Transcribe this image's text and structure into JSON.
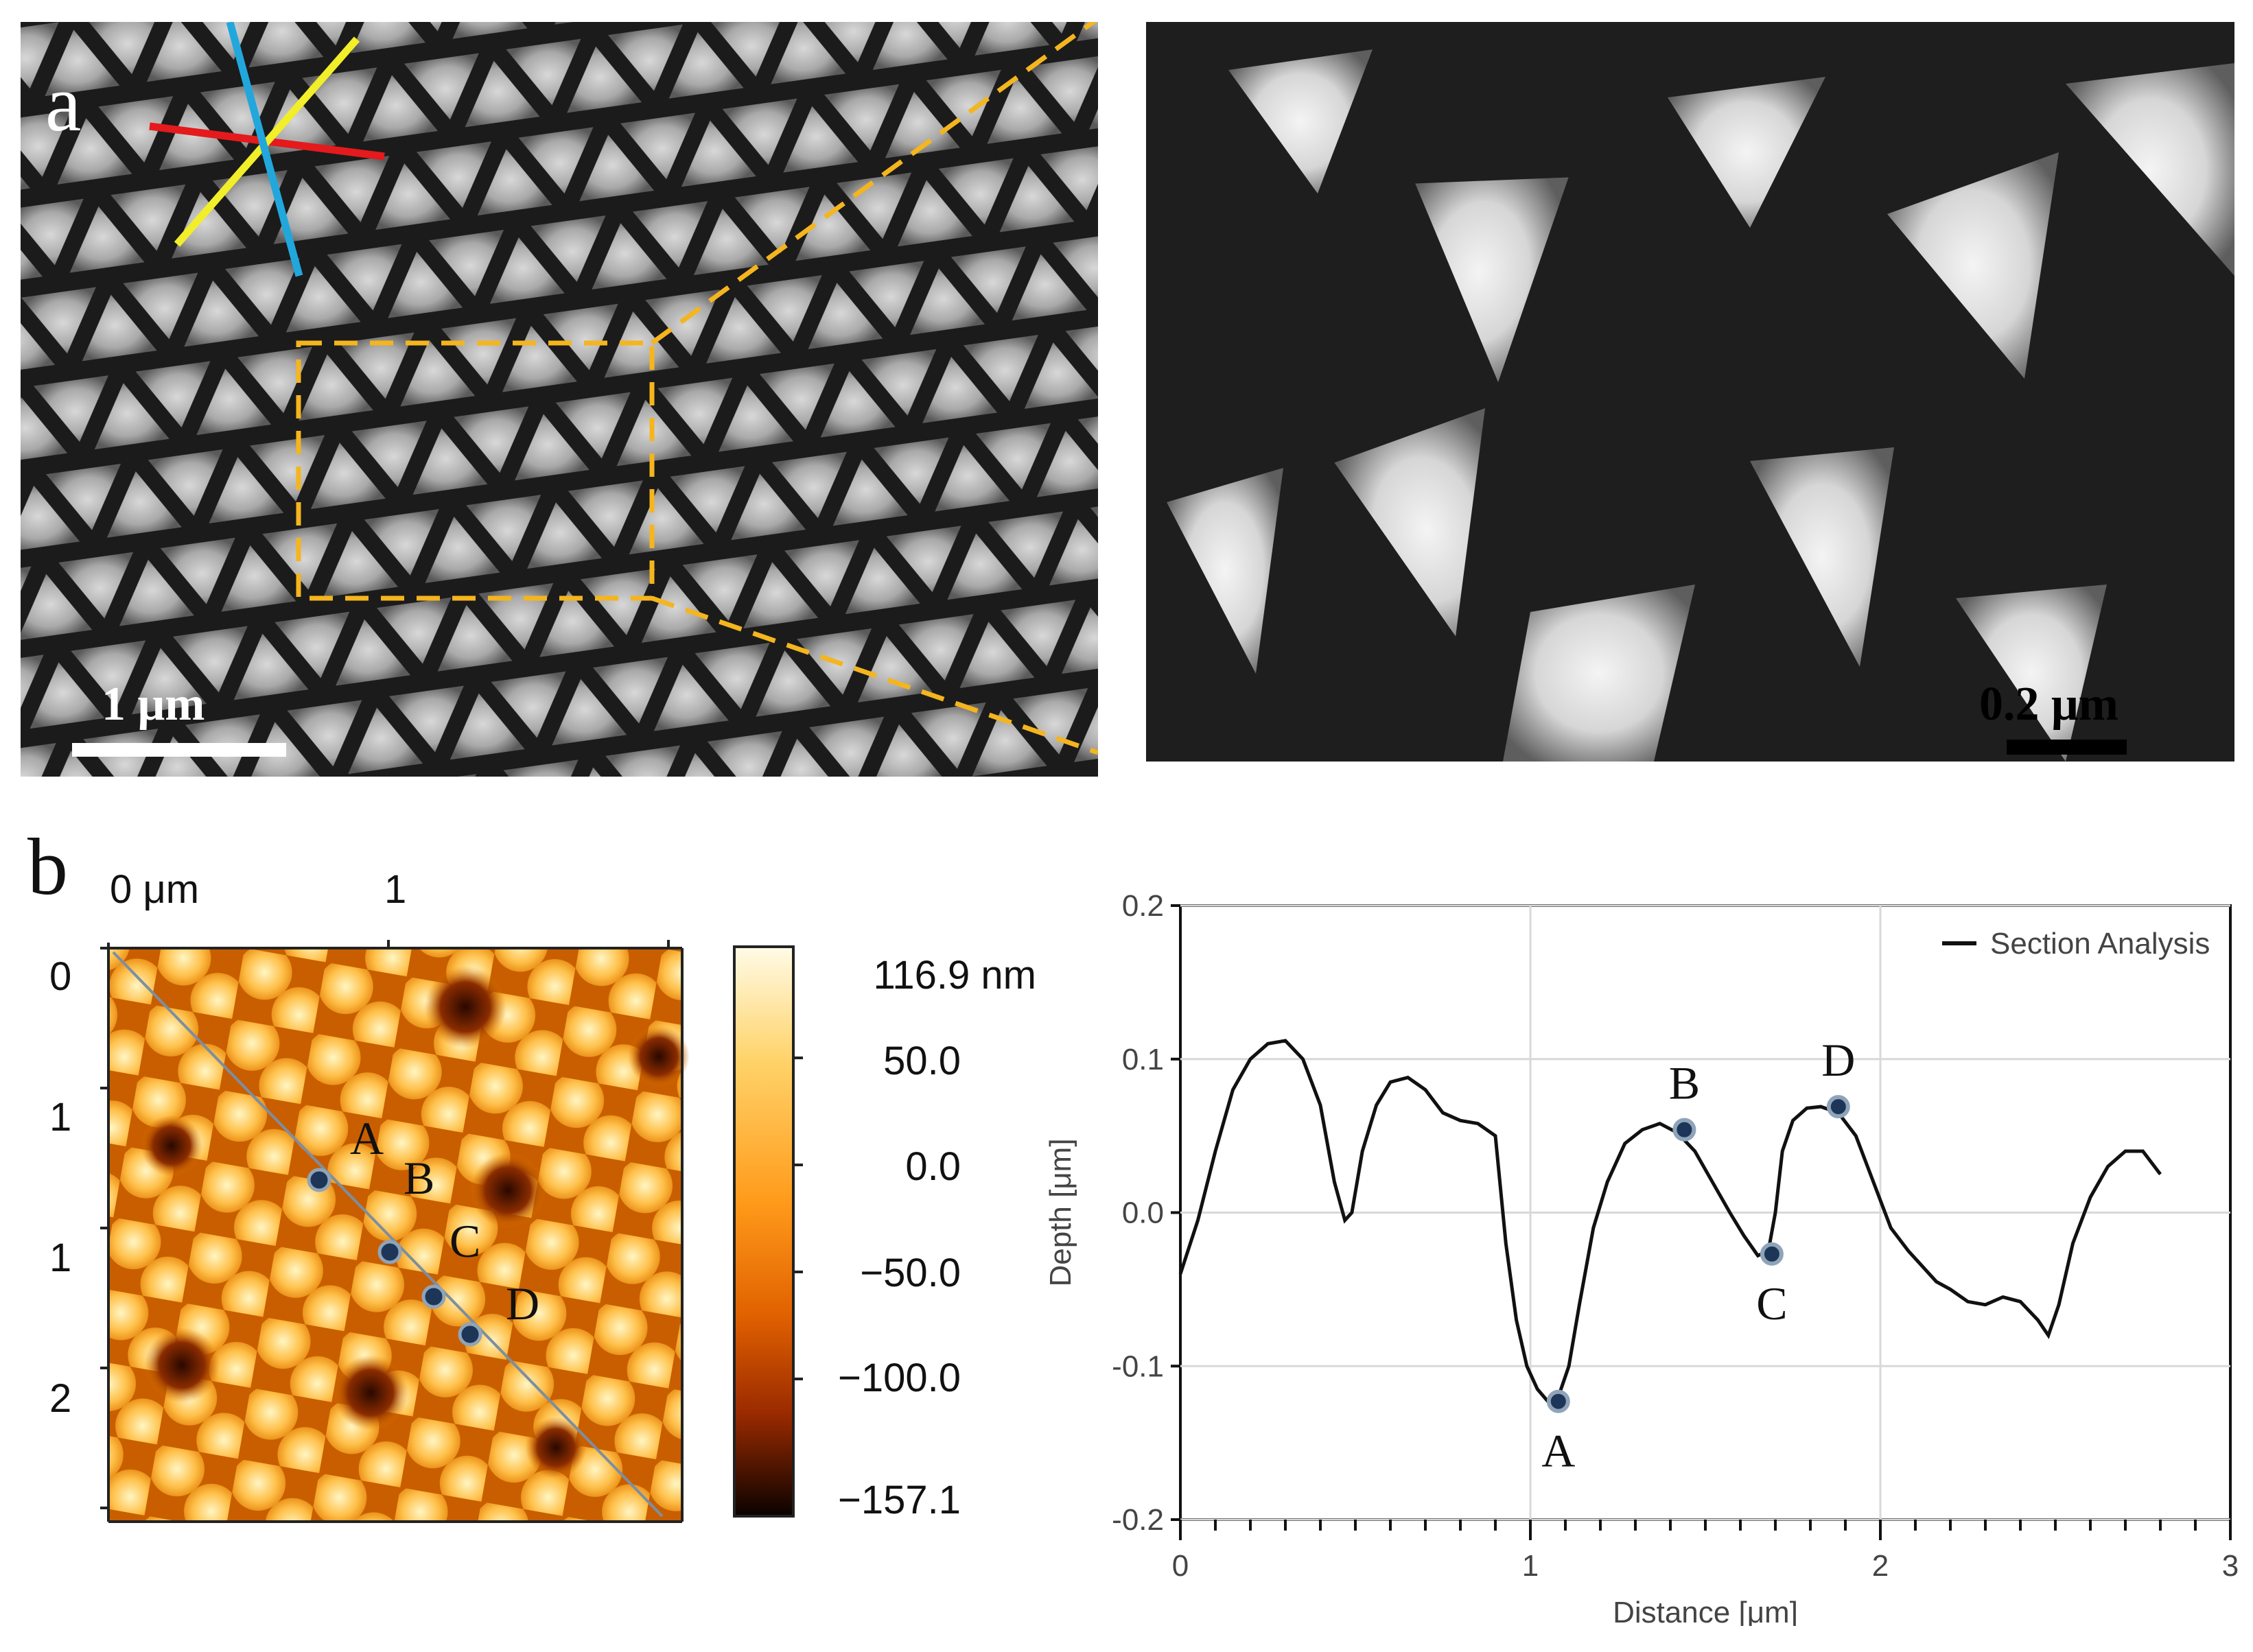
{
  "panel_a": {
    "label": "a",
    "scale_bar_main": "1 μm",
    "scale_bar_zoom": "0.2 μm",
    "line_colors": {
      "red": "#e41a1c",
      "yellow": "#f2ee2a",
      "blue": "#22a7dc",
      "box": "#f4b51e"
    }
  },
  "panel_b": {
    "label": "b",
    "x_axis_ticks": [
      "0 μm",
      "1"
    ],
    "y_axis_ticks": [
      "0",
      "1",
      "1",
      "2"
    ],
    "colorbar_labels": [
      "116.9 nm",
      "50.0",
      "0.0",
      "−50.0",
      "−100.0",
      "−157.1"
    ],
    "map_points": [
      "A",
      "B",
      "C",
      "D"
    ]
  },
  "chart_data": {
    "type": "line",
    "title": "",
    "xlabel": "Distance [μm]",
    "ylabel": "Depth [μm]",
    "xlim": [
      0,
      3
    ],
    "ylim": [
      -0.2,
      0.2
    ],
    "x_ticks": [
      "0",
      "1",
      "2",
      "3"
    ],
    "y_ticks": [
      "0.2",
      "0.1",
      "0.0",
      "-0.1",
      "-0.2"
    ],
    "legend": "Section Analysis",
    "legend_position": "top-right",
    "series": [
      {
        "name": "Section Analysis",
        "x": [
          0.0,
          0.05,
          0.1,
          0.15,
          0.2,
          0.25,
          0.3,
          0.35,
          0.4,
          0.44,
          0.47,
          0.49,
          0.52,
          0.56,
          0.6,
          0.65,
          0.7,
          0.75,
          0.8,
          0.85,
          0.9,
          0.93,
          0.96,
          0.99,
          1.02,
          1.05,
          1.08,
          1.11,
          1.14,
          1.18,
          1.22,
          1.27,
          1.32,
          1.37,
          1.42,
          1.47,
          1.52,
          1.57,
          1.61,
          1.65,
          1.68,
          1.7,
          1.72,
          1.75,
          1.79,
          1.83,
          1.88,
          1.93,
          1.98,
          2.03,
          2.08,
          2.12,
          2.16,
          2.2,
          2.25,
          2.3,
          2.35,
          2.4,
          2.45,
          2.48,
          2.51,
          2.55,
          2.6,
          2.65,
          2.7,
          2.75,
          2.8
        ],
        "values": [
          -0.04,
          -0.005,
          0.04,
          0.08,
          0.1,
          0.11,
          0.112,
          0.1,
          0.07,
          0.02,
          -0.005,
          0.0,
          0.04,
          0.07,
          0.085,
          0.088,
          0.08,
          0.065,
          0.06,
          0.058,
          0.05,
          -0.02,
          -0.07,
          -0.1,
          -0.115,
          -0.123,
          -0.12,
          -0.1,
          -0.06,
          -0.01,
          0.02,
          0.045,
          0.054,
          0.058,
          0.052,
          0.04,
          0.02,
          0.0,
          -0.015,
          -0.028,
          -0.025,
          0.0,
          0.04,
          0.06,
          0.068,
          0.069,
          0.065,
          0.05,
          0.02,
          -0.01,
          -0.025,
          -0.035,
          -0.045,
          -0.05,
          -0.058,
          -0.06,
          -0.055,
          -0.058,
          -0.07,
          -0.08,
          -0.06,
          -0.02,
          0.01,
          0.03,
          0.04,
          0.04,
          0.025
        ]
      }
    ],
    "markers": [
      {
        "label": "A",
        "x": 1.08,
        "y": -0.123
      },
      {
        "label": "B",
        "x": 1.44,
        "y": 0.054
      },
      {
        "label": "C",
        "x": 1.69,
        "y": -0.027
      },
      {
        "label": "D",
        "x": 1.88,
        "y": 0.069
      }
    ]
  }
}
